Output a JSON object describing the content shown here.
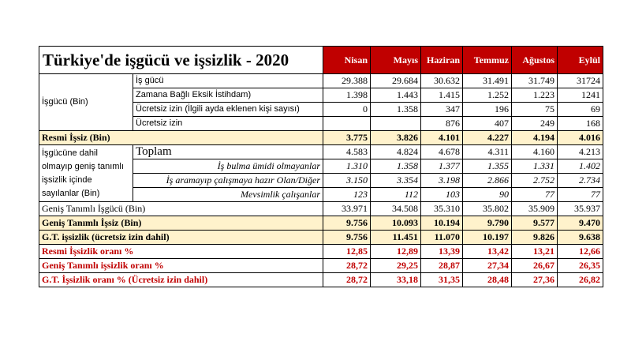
{
  "title": "Türkiye'de işgücü ve işsizlik - 2020",
  "months": [
    "Nisan",
    "Mayıs",
    "Haziran",
    "Temmuz",
    "Ağustos",
    "Eylül"
  ],
  "groups": {
    "isgucu": "İşgücü (Bin)",
    "dahil": "İşgücüne dahil olmayıp geniş tanımlı işsizlik içinde sayılanlar (Bin)"
  },
  "rows": [
    {
      "label": "İş gücü",
      "values": [
        "29.388",
        "29.684",
        "30.632",
        "31.491",
        "31.749",
        "31724"
      ]
    },
    {
      "label": "Zamana Bağlı Eksik İstihdam)",
      "values": [
        "1.398",
        "1.443",
        "1.415",
        "1.252",
        "1.223",
        "1241"
      ]
    },
    {
      "label": "Ücretsiz izin (İlgili ayda eklenen kişi sayısı)",
      "values": [
        "0",
        "1.358",
        "347",
        "196",
        "75",
        "69"
      ]
    },
    {
      "label": "Ücretsiz izin",
      "values": [
        "",
        "",
        "876",
        "407",
        "249",
        "168"
      ]
    },
    {
      "label": "Resmi İşsiz (Bin)",
      "values": [
        "3.775",
        "3.826",
        "4.101",
        "4.227",
        "4.194",
        "4.016"
      ]
    },
    {
      "label": "Toplam",
      "values": [
        "4.583",
        "4.824",
        "4.678",
        "4.311",
        "4.160",
        "4.213"
      ]
    },
    {
      "label": "İş bulma ümidi olmayanlar",
      "values": [
        "1.310",
        "1.358",
        "1.377",
        "1.355",
        "1.331",
        "1.402"
      ]
    },
    {
      "label": "İş aramayıp çalışmaya hazır Olan/Diğer",
      "values": [
        "3.150",
        "3.354",
        "3.198",
        "2.866",
        "2.752",
        "2.734"
      ]
    },
    {
      "label": "Mevsimlik çalışanlar",
      "values": [
        "123",
        "112",
        "103",
        "90",
        "77",
        "77"
      ]
    },
    {
      "label": "Geniş Tanımlı İşgücü (Bin)",
      "values": [
        "33.971",
        "34.508",
        "35.310",
        "35.802",
        "35.909",
        "35.937"
      ]
    },
    {
      "label": "Geniş Tanımlı İşsiz (Bin)",
      "values": [
        "9.756",
        "10.093",
        "10.194",
        "9.790",
        "9.577",
        "9.470"
      ]
    },
    {
      "label": "G.T. işsizlik (ücretsiz izin dahil)",
      "values": [
        "9.756",
        "11.451",
        "11.070",
        "10.197",
        "9.826",
        "9.638"
      ]
    },
    {
      "label": "Resmi İşsizlik oranı %",
      "values": [
        "12,85",
        "12,89",
        "13,39",
        "13,42",
        "13,21",
        "12,66"
      ]
    },
    {
      "label": "Geniş Tanımlı işsizlik oranı %",
      "values": [
        "28,72",
        "29,25",
        "28,87",
        "27,34",
        "26,67",
        "26,35"
      ]
    },
    {
      "label": "G.T. İşsizlik oranı % (Ücretsiz izin dahil)",
      "values": [
        "28,72",
        "33,18",
        "31,35",
        "28,48",
        "27,36",
        "26,82"
      ]
    }
  ],
  "colors": {
    "header_bg": "#c00000",
    "highlight_bg": "#fff2cc",
    "rate_text": "#c00000"
  }
}
